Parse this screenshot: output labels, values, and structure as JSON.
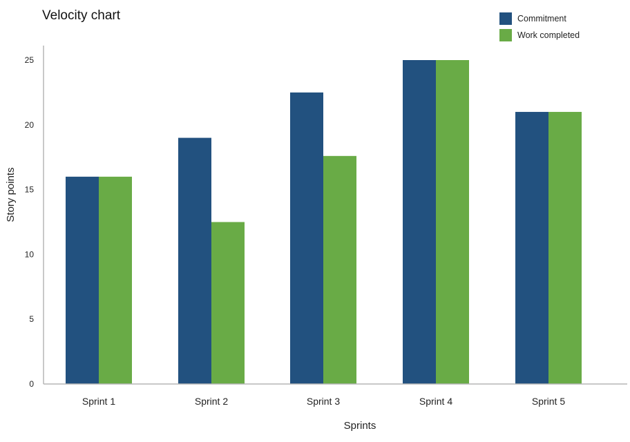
{
  "chart_data": {
    "type": "bar",
    "title": "Velocity chart",
    "xlabel": "Sprints",
    "ylabel": "Story points",
    "categories": [
      "Sprint 1",
      "Sprint 2",
      "Sprint 3",
      "Sprint 4",
      "Sprint 5"
    ],
    "series": [
      {
        "name": "Commitment",
        "color": "#22517f",
        "values": [
          16,
          19,
          22.5,
          25,
          21
        ]
      },
      {
        "name": "Work completed",
        "color": "#69ab46",
        "values": [
          16,
          12.5,
          17.6,
          25,
          21
        ]
      }
    ],
    "yticks": [
      0,
      5,
      10,
      15,
      20,
      25
    ],
    "ylim": [
      0,
      26
    ],
    "grid": false,
    "legend_position": "top-right"
  }
}
